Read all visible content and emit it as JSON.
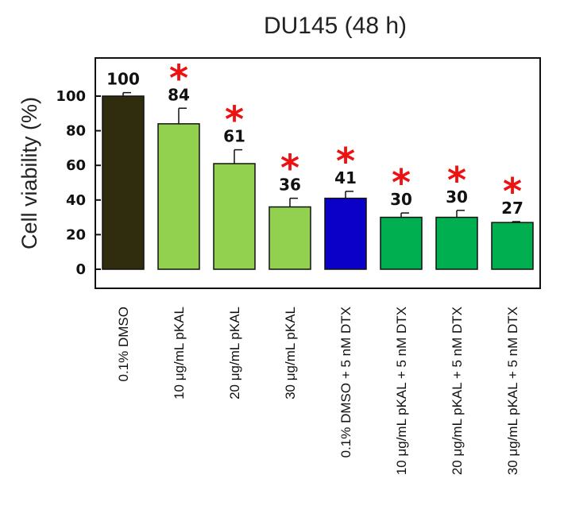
{
  "chart_data": {
    "type": "bar",
    "title": "DU145 (48 h)",
    "ylabel": "Cell viability (%)",
    "xlabel": "",
    "ylim": [
      0,
      100
    ],
    "yticks": [
      0,
      20,
      40,
      60,
      80,
      100
    ],
    "grid": false,
    "categories": [
      "0.1% DMSO",
      "10 μg/mL pKAL",
      "20 μg/mL pKAL",
      "30 μg/mL pKAL",
      "0.1% DMSO + 5 nM DTX",
      "10 μg/mL pKAL + 5 nM DTX",
      "20 μg/mL pKAL + 5 nM DTX",
      "30 μg/mL pKAL + 5 nM DTX"
    ],
    "values": [
      100,
      84,
      61,
      36,
      41,
      30,
      30,
      27
    ],
    "data_labels": [
      "100",
      "84",
      "61",
      "36",
      "41",
      "30",
      "30",
      "27"
    ],
    "error": [
      2,
      9,
      8,
      5,
      4,
      2.5,
      4,
      0.5
    ],
    "significance": [
      "",
      "*",
      "*",
      "*",
      "*",
      "*",
      "*",
      "*"
    ],
    "bar_colors": [
      "#2f2d0e",
      "#92d050",
      "#92d050",
      "#92d050",
      "#0a00c8",
      "#00b050",
      "#00b050",
      "#00b050"
    ],
    "significance_color": "#ee1111"
  }
}
